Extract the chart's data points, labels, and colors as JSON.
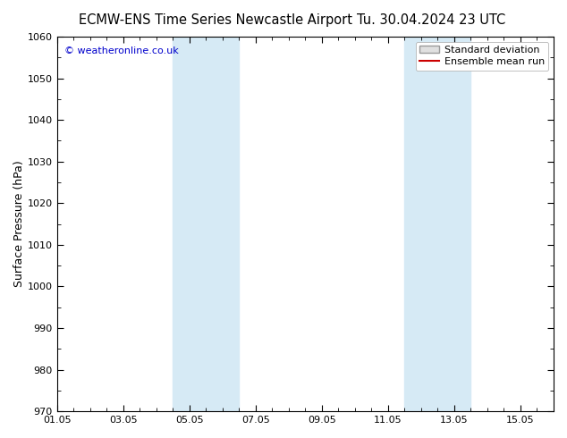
{
  "title_left": "ECMW-ENS Time Series Newcastle Airport",
  "title_right": "Tu. 30.04.2024 23 UTC",
  "ylabel": "Surface Pressure (hPa)",
  "ylim": [
    970,
    1060
  ],
  "yticks": [
    970,
    980,
    990,
    1000,
    1010,
    1020,
    1030,
    1040,
    1050,
    1060
  ],
  "xlim": [
    0,
    15
  ],
  "xtick_labels": [
    "01.05",
    "03.05",
    "05.05",
    "07.05",
    "09.05",
    "11.05",
    "13.05",
    "15.05"
  ],
  "xtick_positions": [
    0,
    2,
    4,
    6,
    8,
    10,
    12,
    14
  ],
  "shaded_bands": [
    {
      "xmin": 3.5,
      "xmax": 5.5,
      "color": "#d6eaf5"
    },
    {
      "xmin": 10.5,
      "xmax": 12.5,
      "color": "#d6eaf5"
    }
  ],
  "copyright_text": "© weatheronline.co.uk",
  "legend_items": [
    {
      "label": "Standard deviation",
      "type": "patch",
      "facecolor": "#e0e0e0",
      "edgecolor": "#999999"
    },
    {
      "label": "Ensemble mean run",
      "type": "line",
      "color": "#cc0000"
    }
  ],
  "bg_color": "#ffffff",
  "plot_bg_color": "#ffffff",
  "title_fontsize": 10.5,
  "axis_label_fontsize": 9,
  "tick_fontsize": 8,
  "copyright_fontsize": 8,
  "legend_fontsize": 8,
  "copyright_color": "#0000cc"
}
